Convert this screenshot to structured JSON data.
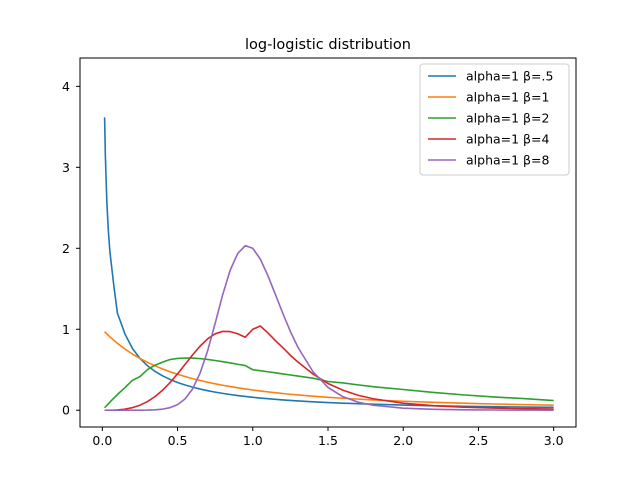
{
  "chart_data": {
    "type": "line",
    "title": "log-logistic distribution",
    "xlabel": "",
    "ylabel": "",
    "xlim": [
      -0.1485,
      3.1485
    ],
    "ylim": [
      -0.207,
      4.35
    ],
    "xticks": [
      {
        "value": 0.0,
        "label": "0.0"
      },
      {
        "value": 0.5,
        "label": "0.5"
      },
      {
        "value": 1.0,
        "label": "1.0"
      },
      {
        "value": 1.5,
        "label": "1.5"
      },
      {
        "value": 2.0,
        "label": "2.0"
      },
      {
        "value": 2.5,
        "label": "2.5"
      },
      {
        "value": 3.0,
        "label": "3.0"
      }
    ],
    "yticks": [
      {
        "value": 0,
        "label": "0"
      },
      {
        "value": 1,
        "label": "1"
      },
      {
        "value": 2,
        "label": "2"
      },
      {
        "value": 3,
        "label": "3"
      },
      {
        "value": 4,
        "label": "4"
      }
    ],
    "grid": false,
    "legend_position": "top-right",
    "x": [
      0.015,
      0.02,
      0.03,
      0.04,
      0.05,
      0.075,
      0.1,
      0.15,
      0.2,
      0.25,
      0.3,
      0.35,
      0.4,
      0.45,
      0.5,
      0.55,
      0.6,
      0.65,
      0.7,
      0.75,
      0.8,
      0.85,
      0.9,
      0.95,
      1.0,
      1.05,
      1.1,
      1.15,
      1.2,
      1.25,
      1.3,
      1.4,
      1.5,
      1.6,
      1.7,
      1.8,
      2.0,
      2.2,
      2.4,
      2.6,
      2.8,
      3.0
    ],
    "series": [
      {
        "name": "alpha=1 β=.5",
        "color": "#1f77b4",
        "values": [
          3.6177,
          3.1455,
          2.5707,
          2.2137,
          1.9635,
          1.5597,
          1.2014,
          0.9437,
          0.7629,
          0.64,
          0.5499,
          0.4805,
          0.4254,
          0.3805,
          0.3432,
          0.3118,
          0.285,
          0.2618,
          0.2416,
          0.2239,
          0.2081,
          0.1941,
          0.1815,
          0.1702,
          0.16,
          0.1507,
          0.1423,
          0.1346,
          0.1275,
          0.121,
          0.115,
          0.1043,
          0.0952,
          0.0873,
          0.0804,
          0.0743,
          0.0637,
          0.0552,
          0.0488,
          0.0436,
          0.0393,
          0.0356
        ]
      },
      {
        "name": "alpha=1 β=1",
        "color": "#ff7f0e",
        "values": [
          0.9702,
          0.9612,
          0.9426,
          0.9246,
          0.907,
          0.8653,
          0.8264,
          0.7561,
          0.6944,
          0.64,
          0.5917,
          0.5487,
          0.5102,
          0.4756,
          0.4444,
          0.4162,
          0.3906,
          0.3673,
          0.346,
          0.3265,
          0.3086,
          0.2922,
          0.277,
          0.263,
          0.25,
          0.2379,
          0.2268,
          0.2163,
          0.2066,
          0.1975,
          0.189,
          0.1736,
          0.16,
          0.1479,
          0.1372,
          0.1276,
          0.1111,
          0.0977,
          0.0865,
          0.0772,
          0.0693,
          0.0625
        ]
      },
      {
        "name": "alpha=1 β=2",
        "color": "#2ca02c",
        "values": [
          0.03,
          0.04,
          0.0599,
          0.0798,
          0.0995,
          0.1478,
          0.1941,
          0.2785,
          0.3698,
          0.4152,
          0.5025,
          0.5562,
          0.5946,
          0.6265,
          0.64,
          0.6452,
          0.6438,
          0.6374,
          0.6272,
          0.6144,
          0.5998,
          0.5841,
          0.5678,
          0.5513,
          0.5,
          0.488,
          0.4752,
          0.462,
          0.4487,
          0.4353,
          0.422,
          0.3958,
          0.355,
          0.3374,
          0.3131,
          0.2906,
          0.256,
          0.22,
          0.1898,
          0.1645,
          0.1437,
          0.12
        ]
      },
      {
        "name": "alpha=1 β=4",
        "color": "#d62728",
        "values": [
          0.0,
          0.0,
          0.0001,
          0.0003,
          0.0005,
          0.0017,
          0.004,
          0.0135,
          0.0319,
          0.0622,
          0.1069,
          0.1681,
          0.2466,
          0.3414,
          0.4498,
          0.5664,
          0.6834,
          0.7918,
          0.8816,
          0.944,
          0.9734,
          0.9712,
          0.9442,
          0.9019,
          1.0,
          1.04,
          0.956,
          0.86,
          0.772,
          0.678,
          0.596,
          0.447,
          0.33,
          0.247,
          0.185,
          0.142,
          0.087,
          0.056,
          0.038,
          0.027,
          0.019,
          0.015
        ]
      },
      {
        "name": "alpha=1 β=8",
        "color": "#9467bd",
        "values": [
          0.0,
          0.0,
          0.0,
          0.0,
          0.0,
          0.0,
          0.0,
          0.0,
          0.0001,
          0.0005,
          0.0017,
          0.0051,
          0.0134,
          0.0317,
          0.0692,
          0.1401,
          0.2636,
          0.4592,
          0.7348,
          1.0738,
          1.4267,
          1.7301,
          1.9365,
          2.0323,
          2.0,
          1.8662,
          1.665,
          1.4316,
          1.1947,
          0.973,
          0.7779,
          0.4767,
          0.281,
          0.166,
          0.0995,
          0.0617,
          0.0257,
          0.0115,
          0.0054,
          0.0028,
          0.0015,
          0.0009
        ]
      }
    ]
  }
}
